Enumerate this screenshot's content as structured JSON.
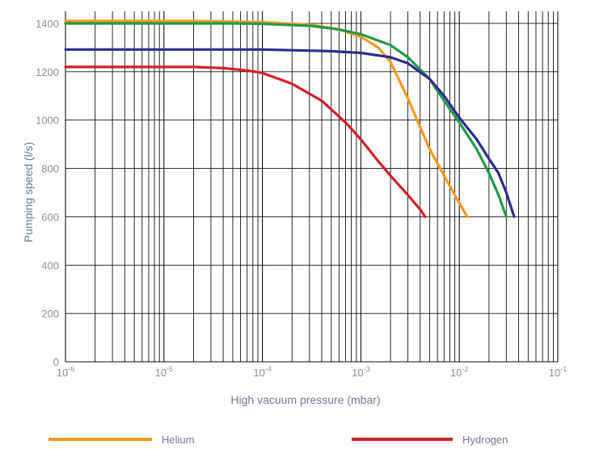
{
  "chart_data": {
    "type": "line",
    "xlabel": "High vacuum pressure (mbar)",
    "ylabel": "Pumping speed (l/s)",
    "x_scale": "log",
    "xlim": [
      1e-06,
      0.1
    ],
    "ylim": [
      0,
      1450
    ],
    "y_ticks": [
      0,
      200,
      400,
      600,
      800,
      1000,
      1200,
      1400
    ],
    "x_ticks": [
      {
        "base": "10",
        "exp": "-6"
      },
      {
        "base": "10",
        "exp": "-5"
      },
      {
        "base": "10",
        "exp": "-4"
      },
      {
        "base": "10",
        "exp": "-3"
      },
      {
        "base": "10",
        "exp": "-2"
      },
      {
        "base": "10",
        "exp": "-1"
      }
    ],
    "grid": true,
    "legend_position": "bottom",
    "series": [
      {
        "name": "Helium",
        "color": "#f39a1e",
        "points": [
          [
            1e-06,
            1410
          ],
          [
            2e-05,
            1410
          ],
          [
            0.0001,
            1405
          ],
          [
            0.0003,
            1395
          ],
          [
            0.0006,
            1375
          ],
          [
            0.001,
            1345
          ],
          [
            0.0015,
            1300
          ],
          [
            0.002,
            1240
          ],
          [
            0.003,
            1090
          ],
          [
            0.004,
            970
          ],
          [
            0.005,
            880
          ],
          [
            0.007,
            770
          ],
          [
            0.009,
            690
          ],
          [
            0.012,
            600
          ]
        ]
      },
      {
        "name": "Hydrogen",
        "color": "#d21f2b",
        "points": [
          [
            1e-06,
            1220
          ],
          [
            2e-05,
            1220
          ],
          [
            4e-05,
            1215
          ],
          [
            7e-05,
            1205
          ],
          [
            0.0001,
            1195
          ],
          [
            0.0002,
            1150
          ],
          [
            0.0004,
            1080
          ],
          [
            0.0007,
            990
          ],
          [
            0.001,
            920
          ],
          [
            0.0015,
            830
          ],
          [
            0.002,
            770
          ],
          [
            0.003,
            690
          ],
          [
            0.004,
            630
          ],
          [
            0.0045,
            600
          ]
        ]
      },
      {
        "color": "#1f9a46",
        "points": [
          [
            1e-06,
            1400
          ],
          [
            5e-05,
            1400
          ],
          [
            0.0001,
            1398
          ],
          [
            0.0003,
            1390
          ],
          [
            0.0006,
            1375
          ],
          [
            0.001,
            1355
          ],
          [
            0.002,
            1310
          ],
          [
            0.003,
            1260
          ],
          [
            0.005,
            1170
          ],
          [
            0.007,
            1080
          ],
          [
            0.01,
            990
          ],
          [
            0.015,
            880
          ],
          [
            0.02,
            780
          ],
          [
            0.025,
            690
          ],
          [
            0.03,
            600
          ]
        ]
      },
      {
        "color": "#2e2d8c",
        "points": [
          [
            1e-06,
            1292
          ],
          [
            0.0001,
            1292
          ],
          [
            0.0005,
            1285
          ],
          [
            0.001,
            1278
          ],
          [
            0.002,
            1260
          ],
          [
            0.003,
            1235
          ],
          [
            0.005,
            1170
          ],
          [
            0.007,
            1100
          ],
          [
            0.01,
            1010
          ],
          [
            0.015,
            920
          ],
          [
            0.02,
            840
          ],
          [
            0.025,
            780
          ],
          [
            0.03,
            700
          ],
          [
            0.036,
            600
          ]
        ]
      }
    ]
  }
}
